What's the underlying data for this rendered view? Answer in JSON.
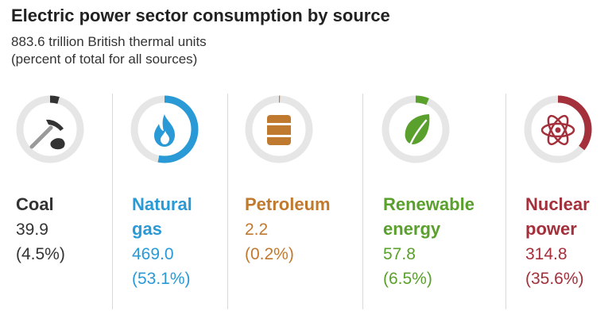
{
  "title": "Electric power sector consumption by source",
  "subtitle_line1": "883.6 trillion British thermal units",
  "subtitle_line2": "(percent of total for all sources)",
  "chart_data": {
    "type": "pie",
    "title": "Electric power sector consumption by source",
    "units": "trillion British thermal units",
    "total": 883.6,
    "sources": [
      {
        "name_line1": "Coal",
        "name_line2": "",
        "value": "39.9",
        "percent": "(4.5%)",
        "share": 4.5,
        "color": "#333333",
        "icon": "coal-icon"
      },
      {
        "name_line1": "Natural",
        "name_line2": "gas",
        "value": "469.0",
        "percent": "(53.1%)",
        "share": 53.1,
        "color": "#2a9ad6",
        "icon": "natural-gas-flame-icon"
      },
      {
        "name_line1": "Petroleum",
        "name_line2": "",
        "value": "2.2",
        "percent": "(0.2%)",
        "share": 0.2,
        "color": "#c07a2f",
        "icon": "petroleum-barrel-icon"
      },
      {
        "name_line1": "Renewable",
        "name_line2": "energy",
        "value": "57.8",
        "percent": "(6.5%)",
        "share": 6.5,
        "color": "#5aa02c",
        "icon": "renewable-leaf-icon"
      },
      {
        "name_line1": "Nuclear",
        "name_line2": "power",
        "value": "314.8",
        "percent": "(35.6%)",
        "share": 35.6,
        "color": "#a3303b",
        "icon": "nuclear-atom-icon"
      }
    ]
  }
}
